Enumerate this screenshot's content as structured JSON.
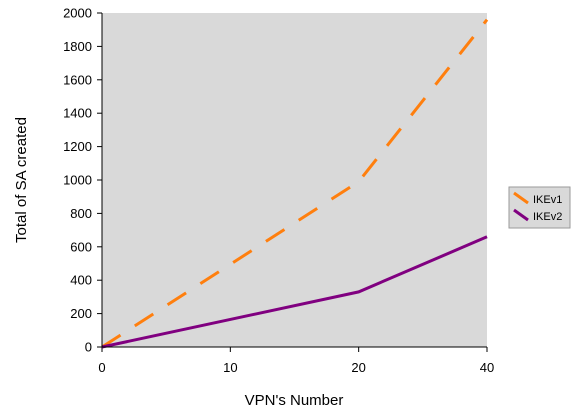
{
  "chart_data": {
    "type": "line",
    "title": "",
    "xlabel": "VPN's Number",
    "ylabel": "Total of SA created",
    "x_ticks": [
      "0",
      "10",
      "20",
      "40"
    ],
    "y_ticks": [
      "0",
      "200",
      "400",
      "600",
      "800",
      "1000",
      "1200",
      "1400",
      "1600",
      "1800",
      "2000"
    ],
    "x_tick_values": [
      0,
      10,
      20,
      40
    ],
    "y_tick_values": [
      0,
      200,
      400,
      600,
      800,
      1000,
      1200,
      1400,
      1600,
      1800,
      2000
    ],
    "x": [
      0,
      20,
      40
    ],
    "ylim": [
      0,
      2000
    ],
    "xlim": [
      0,
      40
    ],
    "grid": false,
    "legend_position": "right",
    "plot_background": "#d9d9d9",
    "series": [
      {
        "name": "IKEv1",
        "values": [
          0,
          990,
          1960
        ],
        "color": "#ff7f0e",
        "style": "dashed"
      },
      {
        "name": "IKEv2",
        "values": [
          0,
          330,
          660
        ],
        "color": "#800080",
        "style": "solid"
      }
    ]
  }
}
